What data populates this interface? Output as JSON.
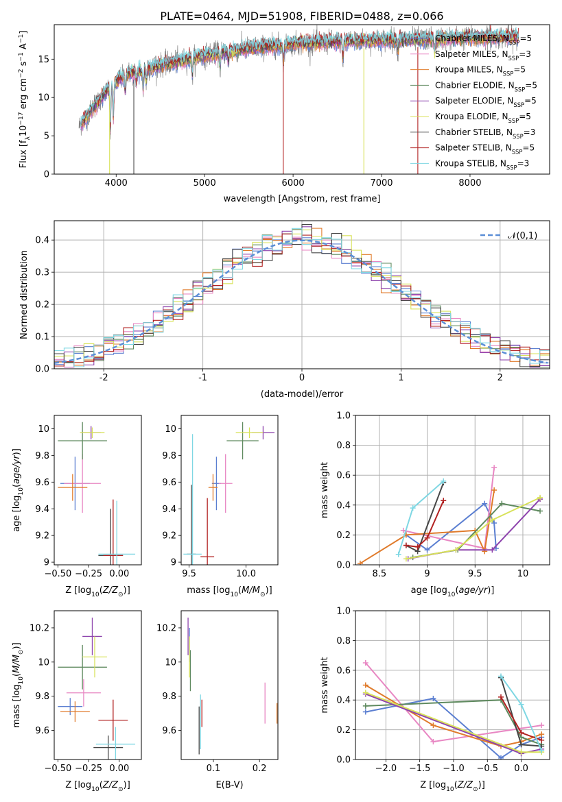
{
  "figure_title": "PLATE=0464, MJD=51908, FIBERID=0488, z=0.066",
  "colors": {
    "Chabrier MILES": "#5b7fd1",
    "Salpeter MILES": "#e887c3",
    "Kroupa MILES": "#e07b2b",
    "Chabrier ELODIE": "#5f8a5f",
    "Salpeter ELODIE": "#8e44ad",
    "Kroupa ELODIE": "#d8e25a",
    "Chabrier STELIB": "#474747",
    "Salpeter STELIB": "#b22222",
    "Kroupa STELIB": "#7fd7e3"
  },
  "chart_data": [
    {
      "id": "spectrum",
      "type": "line",
      "title": "PLATE=0464, MJD=51908, FIBERID=0488, z=0.066",
      "xlabel": "wavelength [Angstrom, rest frame]",
      "ylabel": "Flux [f_λ 10^-17 erg cm^-2 s^-1 A^-1]",
      "xlim": [
        3300,
        8900
      ],
      "ylim": [
        0,
        19.5
      ],
      "xticks": [
        4000,
        5000,
        6000,
        7000,
        8000
      ],
      "yticks": [
        0,
        5,
        10,
        15
      ],
      "legend": "top-right",
      "legend_entries": [
        "Chabrier MILES, N_SSP=5",
        "Salpeter MILES, N_SSP=3",
        "Kroupa MILES, N_SSP=5",
        "Chabrier ELODIE, N_SSP=5",
        "Salpeter ELODIE, N_SSP=5",
        "Kroupa ELODIE, N_SSP=5",
        "Chabrier STELIB, N_SSP=3",
        "Salpeter STELIB, N_SSP=5",
        "Kroupa STELIB, N_SSP=3"
      ],
      "data_color": "#808080",
      "data_range": [
        3580,
        8550
      ],
      "model_range": [
        3600,
        8550
      ],
      "continuum_knots": [
        [
          3580,
          6.2
        ],
        [
          3700,
          8.0
        ],
        [
          3900,
          11.0
        ],
        [
          4100,
          13.0
        ],
        [
          4500,
          14.2
        ],
        [
          5000,
          15.5
        ],
        [
          5500,
          16.4
        ],
        [
          6000,
          17.0
        ],
        [
          6500,
          17.3
        ],
        [
          7000,
          17.5
        ],
        [
          7500,
          17.6
        ],
        [
          8000,
          17.8
        ],
        [
          8550,
          17.9
        ]
      ],
      "absorption_lines": [
        [
          3934,
          6.5
        ],
        [
          3968,
          5.0
        ],
        [
          4102,
          2.5
        ],
        [
          4227,
          1.5
        ],
        [
          4305,
          3.0
        ],
        [
          4340,
          2.0
        ],
        [
          4861,
          2.5
        ],
        [
          5175,
          2.0
        ],
        [
          5269,
          1.5
        ],
        [
          5890,
          2.5
        ],
        [
          6563,
          2.5
        ],
        [
          7185,
          1.5
        ],
        [
          7600,
          2.0
        ]
      ],
      "glitches": [
        [
          3926,
          "Kroupa ELODIE"
        ],
        [
          4200,
          "Chabrier STELIB"
        ],
        [
          5889,
          "Salpeter STELIB"
        ],
        [
          6800,
          "Kroupa ELODIE"
        ],
        [
          7410,
          "Salpeter STELIB"
        ]
      ]
    },
    {
      "id": "residuals",
      "type": "histogram",
      "xlabel": "(data-model)/error",
      "ylabel": "Normed distribution",
      "xlim": [
        -2.5,
        2.5
      ],
      "ylim": [
        0,
        0.46
      ],
      "xticks": [
        -2,
        -1,
        0,
        1,
        2
      ],
      "yticks": [
        0.0,
        0.1,
        0.2,
        0.3,
        0.4
      ],
      "bin_width": 0.1,
      "reference_curve": {
        "label": "𝒩(0,1)",
        "mean": 0,
        "sigma": 1,
        "color": "#5b8ed6"
      },
      "legend": "top-right",
      "grid": true
    },
    {
      "id": "age_vs_Z",
      "type": "errorbar",
      "xlabel": "Z [log10(Z/Z☉)]",
      "ylabel": "age [log10(age/yr)]",
      "xlim": [
        -0.53,
        0.18
      ],
      "ylim": [
        8.98,
        10.1
      ],
      "xticks": [
        -0.5,
        -0.25,
        0.0
      ],
      "xticklabels": [
        "−0.50",
        "−0.25",
        "0.00"
      ],
      "yticks": [
        9.0,
        9.2,
        9.4,
        9.6,
        9.8,
        10.0
      ],
      "points": [
        {
          "model": "Chabrier MILES",
          "x": -0.36,
          "y": 9.59,
          "xerr": 0.12,
          "yerr": 0.2
        },
        {
          "model": "Salpeter MILES",
          "x": -0.3,
          "y": 9.59,
          "xerr": 0.15,
          "yerr": 0.22
        },
        {
          "model": "Kroupa MILES",
          "x": -0.38,
          "y": 9.56,
          "xerr": 0.12,
          "yerr": 0.1
        },
        {
          "model": "Chabrier ELODIE",
          "x": -0.3,
          "y": 9.91,
          "xerr": 0.2,
          "yerr": 0.14
        },
        {
          "model": "Salpeter ELODIE",
          "x": -0.23,
          "y": 9.97,
          "xerr": 0.08,
          "yerr": 0.05
        },
        {
          "model": "Kroupa ELODIE",
          "x": -0.22,
          "y": 9.97,
          "xerr": 0.1,
          "yerr": 0.04
        },
        {
          "model": "Chabrier STELIB",
          "x": -0.07,
          "y": 9.05,
          "xerr": 0.1,
          "yerr": 0.35
        },
        {
          "model": "Salpeter STELIB",
          "x": -0.05,
          "y": 9.05,
          "xerr": 0.08,
          "yerr": 0.42
        },
        {
          "model": "Kroupa STELIB",
          "x": -0.02,
          "y": 9.06,
          "xerr": 0.15,
          "yerr": 0.4
        }
      ]
    },
    {
      "id": "age_vs_mass",
      "type": "errorbar",
      "xlabel": "mass [log10(M/M☉)]",
      "ylabel": "",
      "xlim": [
        9.43,
        10.28
      ],
      "ylim": [
        8.98,
        10.1
      ],
      "xticks": [
        9.5,
        10.0
      ],
      "xticklabels": [
        "9.5",
        "10.0"
      ],
      "yticks": [
        9.0,
        9.2,
        9.4,
        9.6,
        9.8,
        10.0
      ],
      "points": [
        {
          "model": "Chabrier MILES",
          "x": 9.74,
          "y": 9.59,
          "xerr": 0.04,
          "yerr": 0.2
        },
        {
          "model": "Salpeter MILES",
          "x": 9.82,
          "y": 9.59,
          "xerr": 0.06,
          "yerr": 0.22
        },
        {
          "model": "Kroupa MILES",
          "x": 9.71,
          "y": 9.56,
          "xerr": 0.04,
          "yerr": 0.1
        },
        {
          "model": "Chabrier ELODIE",
          "x": 9.97,
          "y": 9.91,
          "xerr": 0.14,
          "yerr": 0.14
        },
        {
          "model": "Salpeter ELODIE",
          "x": 10.15,
          "y": 9.97,
          "xerr": 0.1,
          "yerr": 0.05
        },
        {
          "model": "Kroupa ELODIE",
          "x": 10.03,
          "y": 9.97,
          "xerr": 0.12,
          "yerr": 0.04
        },
        {
          "model": "Chabrier STELIB",
          "x": 9.52,
          "y": 9.06,
          "xerr": 0.04,
          "yerr": 0.52
        },
        {
          "model": "Salpeter STELIB",
          "x": 9.66,
          "y": 9.04,
          "xerr": 0.06,
          "yerr": 0.44
        },
        {
          "model": "Kroupa STELIB",
          "x": 9.53,
          "y": 9.06,
          "xerr": 0.08,
          "yerr": 0.9
        }
      ]
    },
    {
      "id": "mass_weight_vs_age",
      "type": "line",
      "xlabel": "age [log10(age/yr)]",
      "ylabel": "mass weight",
      "xlim": [
        8.25,
        10.28
      ],
      "ylim": [
        0,
        1.0
      ],
      "xticks": [
        8.5,
        9.0,
        9.5,
        10.0
      ],
      "yticks": [
        0.0,
        0.2,
        0.4,
        0.6,
        0.8,
        1.0
      ],
      "grid": true,
      "series": [
        {
          "name": "Chabrier MILES",
          "x": [
            8.78,
            9.0,
            9.6,
            9.7,
            9.72
          ],
          "y": [
            0.2,
            0.1,
            0.41,
            0.28,
            0.11
          ]
        },
        {
          "name": "Salpeter MILES",
          "x": [
            8.75,
            9.6,
            9.7
          ],
          "y": [
            0.23,
            0.11,
            0.65
          ]
        },
        {
          "name": "Kroupa MILES",
          "x": [
            8.3,
            8.78,
            9.5,
            9.6,
            9.7
          ],
          "y": [
            0.01,
            0.2,
            0.23,
            0.09,
            0.5
          ]
        },
        {
          "name": "Chabrier ELODIE",
          "x": [
            8.85,
            9.32,
            9.78,
            10.18
          ],
          "y": [
            0.05,
            0.1,
            0.41,
            0.36
          ]
        },
        {
          "name": "Salpeter ELODIE",
          "x": [
            8.8,
            9.3,
            9.68,
            10.18
          ],
          "y": [
            0.04,
            0.1,
            0.1,
            0.44
          ]
        },
        {
          "name": "Kroupa ELODIE",
          "x": [
            8.78,
            9.3,
            9.68,
            10.18
          ],
          "y": [
            0.04,
            0.1,
            0.3,
            0.45
          ]
        },
        {
          "name": "Chabrier STELIB",
          "x": [
            8.78,
            8.9,
            9.17
          ],
          "y": [
            0.13,
            0.09,
            0.55
          ]
        },
        {
          "name": "Salpeter STELIB",
          "x": [
            8.78,
            8.9,
            9.0,
            9.17
          ],
          "y": [
            0.13,
            0.12,
            0.18,
            0.43
          ]
        },
        {
          "name": "Kroupa STELIB",
          "x": [
            8.7,
            8.85,
            9.17
          ],
          "y": [
            0.07,
            0.38,
            0.56
          ]
        }
      ]
    },
    {
      "id": "mass_vs_Z",
      "type": "errorbar",
      "xlabel": "Z [log10(Z/Z☉)]",
      "ylabel": "mass [log10(M/M☉)]",
      "xlim": [
        -0.53,
        0.18
      ],
      "ylim": [
        9.43,
        10.3
      ],
      "xticks": [
        -0.5,
        -0.25,
        0.0
      ],
      "xticklabels": [
        "−0.50",
        "−0.25",
        "0.00"
      ],
      "yticks": [
        9.6,
        9.8,
        10.0,
        10.2
      ],
      "points": [
        {
          "model": "Chabrier MILES",
          "x": -0.4,
          "y": 9.74,
          "xerr": 0.1,
          "yerr": 0.05
        },
        {
          "model": "Salpeter MILES",
          "x": -0.29,
          "y": 9.82,
          "xerr": 0.14,
          "yerr": 0.08
        },
        {
          "model": "Kroupa MILES",
          "x": -0.36,
          "y": 9.71,
          "xerr": 0.12,
          "yerr": 0.06
        },
        {
          "model": "Chabrier ELODIE",
          "x": -0.3,
          "y": 9.97,
          "xerr": 0.2,
          "yerr": 0.13
        },
        {
          "model": "Salpeter ELODIE",
          "x": -0.22,
          "y": 10.15,
          "xerr": 0.08,
          "yerr": 0.11
        },
        {
          "model": "Kroupa ELODIE",
          "x": -0.2,
          "y": 10.03,
          "xerr": 0.1,
          "yerr": 0.12
        },
        {
          "model": "Chabrier STELIB",
          "x": -0.09,
          "y": 9.5,
          "xerr": 0.12,
          "yerr": 0.07
        },
        {
          "model": "Salpeter STELIB",
          "x": -0.05,
          "y": 9.66,
          "xerr": 0.12,
          "yerr": 0.12
        },
        {
          "model": "Kroupa STELIB",
          "x": -0.03,
          "y": 9.52,
          "xerr": 0.16,
          "yerr": 0.1
        }
      ]
    },
    {
      "id": "mass_vs_ebv",
      "type": "errorbar",
      "xlabel": "E(B-V)",
      "ylabel": "",
      "xlim": [
        0.03,
        0.24
      ],
      "ylim": [
        9.43,
        10.3
      ],
      "xticks": [
        0.1,
        0.2
      ],
      "xticklabels": [
        "0.1",
        "0.2"
      ],
      "yticks": [
        9.6,
        9.8,
        10.0,
        10.2
      ],
      "points": [
        {
          "model": "Chabrier MILES",
          "x": 0.048,
          "y": 10.1,
          "xerr": 0,
          "yerr": 0.1
        },
        {
          "model": "Salpeter MILES",
          "x": 0.212,
          "y": 9.76,
          "xerr": 0,
          "yerr": 0.12
        },
        {
          "model": "Kroupa MILES",
          "x": 0.238,
          "y": 9.7,
          "xerr": 0,
          "yerr": 0.06
        },
        {
          "model": "Chabrier ELODIE",
          "x": 0.05,
          "y": 9.95,
          "xerr": 0,
          "yerr": 0.12
        },
        {
          "model": "Salpeter ELODIE",
          "x": 0.045,
          "y": 10.15,
          "xerr": 0,
          "yerr": 0.11
        },
        {
          "model": "Kroupa ELODIE",
          "x": 0.048,
          "y": 10.03,
          "xerr": 0,
          "yerr": 0.12
        },
        {
          "model": "Chabrier STELIB",
          "x": 0.069,
          "y": 9.6,
          "xerr": 0,
          "yerr": 0.14
        },
        {
          "model": "Salpeter STELIB",
          "x": 0.075,
          "y": 9.7,
          "xerr": 0,
          "yerr": 0.08
        },
        {
          "model": "Kroupa STELIB",
          "x": 0.072,
          "y": 9.65,
          "xerr": 0,
          "yerr": 0.16
        }
      ]
    },
    {
      "id": "mass_weight_vs_Z",
      "type": "line",
      "xlabel": "Z [log10(Z/Z☉)]",
      "ylabel": "mass weight",
      "xlim": [
        -2.45,
        0.42
      ],
      "ylim": [
        0,
        1.0
      ],
      "xticks": [
        -2.0,
        -1.5,
        -1.0,
        -0.5,
        0.0
      ],
      "xticklabels": [
        "−2.0",
        "−1.5",
        "−1.0",
        "−0.5",
        "0.0"
      ],
      "yticks": [
        0.0,
        0.2,
        0.4,
        0.6,
        0.8,
        1.0
      ],
      "grid": true,
      "series": [
        {
          "name": "Chabrier MILES",
          "x": [
            -2.3,
            -1.3,
            -0.3,
            0.0,
            0.3
          ],
          "y": [
            0.32,
            0.41,
            0.01,
            0.1,
            0.15
          ]
        },
        {
          "name": "Salpeter MILES",
          "x": [
            -2.3,
            -1.3,
            0.3
          ],
          "y": [
            0.65,
            0.12,
            0.23
          ]
        },
        {
          "name": "Kroupa MILES",
          "x": [
            -2.3,
            -1.3,
            -0.3,
            0.0,
            0.3
          ],
          "y": [
            0.5,
            0.23,
            0.09,
            0.12,
            0.17
          ]
        },
        {
          "name": "Chabrier ELODIE",
          "x": [
            -2.3,
            -0.3,
            0.0,
            0.3
          ],
          "y": [
            0.36,
            0.4,
            0.15,
            0.1
          ]
        },
        {
          "name": "Salpeter ELODIE",
          "x": [
            -2.3,
            0.0,
            0.3
          ],
          "y": [
            0.44,
            0.04,
            0.07
          ]
        },
        {
          "name": "Kroupa ELODIE",
          "x": [
            -2.3,
            0.0,
            0.3
          ],
          "y": [
            0.45,
            0.05,
            0.05
          ]
        },
        {
          "name": "Chabrier STELIB",
          "x": [
            -0.3,
            0.0,
            0.3
          ],
          "y": [
            0.55,
            0.1,
            0.09
          ]
        },
        {
          "name": "Salpeter STELIB",
          "x": [
            -0.3,
            0.0,
            0.3
          ],
          "y": [
            0.42,
            0.18,
            0.13
          ]
        },
        {
          "name": "Kroupa STELIB",
          "x": [
            -0.3,
            0.0,
            0.3
          ],
          "y": [
            0.56,
            0.37,
            0.06
          ]
        }
      ]
    }
  ]
}
